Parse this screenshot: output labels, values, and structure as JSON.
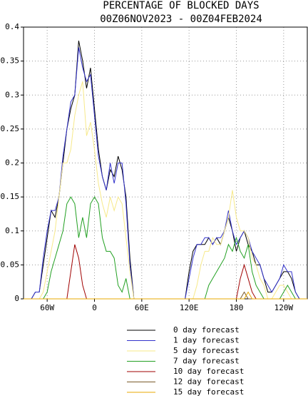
{
  "chart_data": {
    "type": "line",
    "title": "PERCENTAGE OF BLOCKED DAYS",
    "subtitle": "00Z06NOV2023 - 00Z04FEB2024",
    "x": [
      -90,
      -85,
      -80,
      -75,
      -70,
      -65,
      -60,
      -55,
      -50,
      -45,
      -40,
      -35,
      -30,
      -25,
      -20,
      -15,
      -10,
      -5,
      0,
      5,
      10,
      15,
      20,
      25,
      30,
      35,
      40,
      45,
      50,
      55,
      60,
      65,
      70,
      75,
      80,
      85,
      90,
      95,
      100,
      105,
      110,
      115,
      120,
      125,
      130,
      135,
      140,
      145,
      150,
      155,
      160,
      165,
      170,
      175,
      180,
      185,
      190,
      195,
      200,
      205,
      210,
      215,
      220,
      225,
      230,
      235,
      240,
      245,
      250,
      255,
      260,
      265,
      270
    ],
    "xlim": [
      -90,
      270
    ],
    "xticks": [
      {
        "value": -60,
        "label": "60W"
      },
      0,
      {
        "value": 60,
        "label": "60E"
      },
      {
        "value": 120,
        "label": "120E"
      },
      180,
      {
        "value": 240,
        "label": "120W"
      }
    ],
    "ylim": [
      0,
      0.4
    ],
    "yticks": [
      0,
      0.05,
      0.1,
      0.15,
      0.2,
      0.25,
      0.3,
      0.35,
      0.4
    ],
    "grid": true,
    "series": [
      {
        "name": "0 day forecast",
        "color": "#000000",
        "values": [
          0,
          0,
          0,
          0.01,
          0.01,
          0.05,
          0.09,
          0.13,
          0.12,
          0.15,
          0.2,
          0.25,
          0.28,
          0.3,
          0.38,
          0.35,
          0.31,
          0.34,
          0.28,
          0.22,
          0.18,
          0.16,
          0.19,
          0.18,
          0.21,
          0.19,
          0.15,
          0.06,
          0,
          0,
          0,
          0,
          0,
          0,
          0,
          0,
          0,
          0,
          0,
          0,
          0,
          0,
          0.04,
          0.07,
          0.08,
          0.08,
          0.08,
          0.09,
          0.08,
          0.09,
          0.08,
          0.1,
          0.12,
          0.1,
          0.07,
          0.09,
          0.1,
          0.08,
          0.07,
          0.05,
          0.05,
          0.03,
          0.01,
          0.01,
          0.02,
          0.03,
          0.04,
          0.04,
          0.03,
          0.01,
          0,
          0,
          0
        ]
      },
      {
        "name": "1 day forecast",
        "color": "#3333cc",
        "values": [
          0,
          0,
          0,
          0.01,
          0.01,
          0.06,
          0.1,
          0.13,
          0.13,
          0.15,
          0.21,
          0.25,
          0.29,
          0.3,
          0.37,
          0.34,
          0.32,
          0.33,
          0.27,
          0.21,
          0.18,
          0.16,
          0.2,
          0.17,
          0.2,
          0.2,
          0.14,
          0.05,
          0,
          0,
          0,
          0,
          0,
          0,
          0,
          0,
          0,
          0,
          0,
          0,
          0,
          0,
          0.03,
          0.06,
          0.08,
          0.08,
          0.09,
          0.09,
          0.08,
          0.09,
          0.09,
          0.1,
          0.13,
          0.1,
          0.08,
          0.09,
          0.1,
          0.09,
          0.07,
          0.06,
          0.05,
          0.03,
          0.02,
          0.01,
          0.02,
          0.03,
          0.05,
          0.04,
          0.04,
          0.01,
          0,
          0,
          0
        ]
      },
      {
        "name": "5 day forecast",
        "color": "#f7e98a",
        "values": [
          0,
          0,
          0,
          0,
          0,
          0.01,
          0.04,
          0.07,
          0.1,
          0.15,
          0.2,
          0.2,
          0.22,
          0.27,
          0.3,
          0.32,
          0.24,
          0.26,
          0.22,
          0.17,
          0.14,
          0.12,
          0.15,
          0.13,
          0.15,
          0.14,
          0.09,
          0.04,
          0,
          0,
          0,
          0,
          0,
          0,
          0,
          0,
          0,
          0,
          0,
          0,
          0,
          0,
          0,
          0,
          0.02,
          0.05,
          0.07,
          0.07,
          0.09,
          0.08,
          0.08,
          0.1,
          0.12,
          0.16,
          0.12,
          0.1,
          0.1,
          0.09,
          0.06,
          0.05,
          0.03,
          0.02,
          0,
          0,
          0.01,
          0.02,
          0.02,
          0.01,
          0,
          0,
          0,
          0,
          0
        ]
      },
      {
        "name": "7 day forecast",
        "color": "#22a022",
        "values": [
          0,
          0,
          0,
          0,
          0,
          0,
          0.01,
          0.04,
          0.06,
          0.08,
          0.1,
          0.14,
          0.15,
          0.14,
          0.09,
          0.12,
          0.09,
          0.14,
          0.15,
          0.14,
          0.09,
          0.07,
          0.07,
          0.06,
          0.02,
          0.01,
          0.03,
          0,
          0,
          0,
          0,
          0,
          0,
          0,
          0,
          0,
          0,
          0,
          0,
          0,
          0,
          0,
          0,
          0,
          0,
          0,
          0,
          0.02,
          0.03,
          0.04,
          0.05,
          0.06,
          0.08,
          0.07,
          0.09,
          0.07,
          0.06,
          0.08,
          0.04,
          0.02,
          0.01,
          0,
          0,
          0,
          0,
          0,
          0.01,
          0.02,
          0.01,
          0,
          0,
          0,
          0
        ]
      },
      {
        "name": "10 day forecast",
        "color": "#a00000",
        "values": [
          0,
          0,
          0,
          0,
          0,
          0,
          0,
          0,
          0,
          0,
          0,
          0,
          0.04,
          0.08,
          0.06,
          0.02,
          0,
          0,
          0,
          0,
          0,
          0,
          0,
          0,
          0,
          0,
          0,
          0,
          0,
          0,
          0,
          0,
          0,
          0,
          0,
          0,
          0,
          0,
          0,
          0,
          0,
          0,
          0,
          0,
          0,
          0,
          0,
          0,
          0,
          0,
          0,
          0,
          0,
          0,
          0,
          0.03,
          0.05,
          0.03,
          0.01,
          0,
          0,
          0,
          0,
          0,
          0,
          0,
          0,
          0,
          0,
          0,
          0,
          0,
          0
        ]
      },
      {
        "name": "12 day forecast",
        "color": "#7a5a2a",
        "values": [
          0,
          0,
          0,
          0,
          0,
          0,
          0,
          0,
          0,
          0,
          0,
          0,
          0,
          0,
          0,
          0,
          0,
          0,
          0,
          0,
          0,
          0,
          0,
          0,
          0,
          0,
          0,
          0,
          0,
          0,
          0,
          0,
          0,
          0,
          0,
          0,
          0,
          0,
          0,
          0,
          0,
          0,
          0,
          0,
          0,
          0,
          0,
          0,
          0,
          0,
          0,
          0,
          0,
          0,
          0,
          0,
          0.01,
          0,
          0,
          0,
          0,
          0,
          0,
          0,
          0,
          0,
          0,
          0,
          0,
          0,
          0,
          0,
          0
        ]
      },
      {
        "name": "15 day forecast",
        "color": "#e8a800",
        "values": [
          0,
          0,
          0,
          0,
          0,
          0,
          0,
          0,
          0,
          0,
          0,
          0,
          0,
          0,
          0,
          0,
          0,
          0,
          0,
          0,
          0,
          0,
          0,
          0,
          0,
          0,
          0,
          0,
          0,
          0,
          0,
          0,
          0,
          0,
          0,
          0,
          0,
          0,
          0,
          0,
          0,
          0,
          0,
          0,
          0,
          0,
          0,
          0,
          0,
          0,
          0,
          0,
          0,
          0,
          0,
          0,
          0,
          0.01,
          0,
          0,
          0,
          0,
          0,
          0,
          0,
          0,
          0,
          0,
          0,
          0,
          0,
          0,
          0
        ]
      }
    ]
  }
}
